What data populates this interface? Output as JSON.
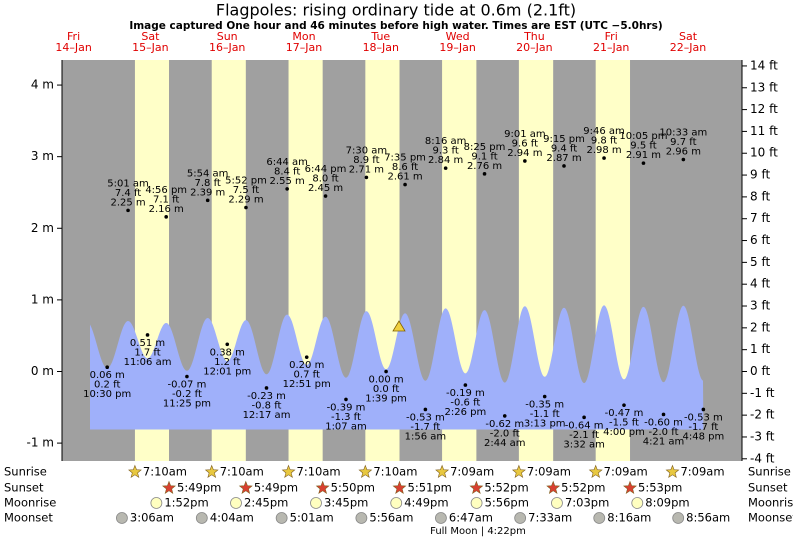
{
  "header": {
    "title": "Flagpoles: rising  ordinary tide at 0.6m (2.1ft)",
    "subtitle": "Image captured One hour and 46 minutes before high water. Times are EST (UTC −5.0hrs)"
  },
  "axes": {
    "ylim": [
      -1.25,
      4.35
    ],
    "yticks": [
      {
        "value": 4,
        "label": "4 m"
      },
      {
        "value": 3,
        "label": "3 m"
      },
      {
        "value": 2,
        "label": "2 m"
      },
      {
        "value": 1,
        "label": "1 m"
      },
      {
        "value": 0,
        "label": "0 m"
      },
      {
        "value": -1,
        "label": "-1 m"
      }
    ],
    "y2lim": [
      -4.101,
      14.272
    ],
    "y2ticks": [
      {
        "value": 14,
        "label": "14 ft"
      },
      {
        "value": 13,
        "label": "13 ft"
      },
      {
        "value": 12,
        "label": "12 ft"
      },
      {
        "value": 11,
        "label": "11 ft"
      },
      {
        "value": 10,
        "label": "10 ft"
      },
      {
        "value": 9,
        "label": "9 ft"
      },
      {
        "value": 8,
        "label": "8 ft"
      },
      {
        "value": 7,
        "label": "7 ft"
      },
      {
        "value": 6,
        "label": "6 ft"
      },
      {
        "value": 5,
        "label": "5 ft"
      },
      {
        "value": 4,
        "label": "4 ft"
      },
      {
        "value": 3,
        "label": "3 ft"
      },
      {
        "value": 2,
        "label": "2 ft"
      },
      {
        "value": 1,
        "label": "1 ft"
      },
      {
        "value": 0,
        "label": "0 ft"
      },
      {
        "value": -1,
        "label": "-1 ft"
      },
      {
        "value": -2,
        "label": "-2 ft"
      },
      {
        "value": -3,
        "label": "-3 ft"
      },
      {
        "value": -4,
        "label": "-4 ft"
      }
    ]
  },
  "days": [
    {
      "dow": "Fri",
      "date": "14–Jan",
      "tides": [
        {
          "time": "10:30 pm",
          "height": {
            "value": 0.06,
            "label": "0.06 m"
          },
          "ft": "0.2 ft"
        }
      ]
    },
    {
      "dow": "Sat",
      "date": "15–Jan",
      "tides": [
        {
          "time": "5:01 am",
          "height": {
            "value": 2.25,
            "label": "2.25 m"
          },
          "ft": "7.4 ft"
        },
        {
          "time": "11:06 am",
          "height": {
            "value": 0.51,
            "label": "0.51 m"
          },
          "ft": "1.7 ft"
        },
        {
          "time": "4:56 pm",
          "height": {
            "value": 2.16,
            "label": "2.16 m"
          },
          "ft": "7.1 ft"
        },
        {
          "time": "11:25 pm",
          "height": {
            "value": -0.07,
            "label": "-0.07 m"
          },
          "ft": "-0.2 ft"
        }
      ],
      "sunrise": "7:10am",
      "sunset": "5:49pm",
      "moonrise": "1:52pm",
      "moonset": "3:06am"
    },
    {
      "dow": "Sun",
      "date": "16–Jan",
      "tides": [
        {
          "time": "5:54 am",
          "height": {
            "value": 2.39,
            "label": "2.39 m"
          },
          "ft": "7.8 ft"
        },
        {
          "time": "12:01 pm",
          "height": {
            "value": 0.38,
            "label": "0.38 m"
          },
          "ft": "1.2 ft"
        },
        {
          "time": "5:52 pm",
          "height": {
            "value": 2.29,
            "label": "2.29 m"
          },
          "ft": "7.5 ft"
        }
      ],
      "sunrise": "7:10am",
      "sunset": "5:49pm",
      "moonrise": "2:45pm",
      "moonset": "4:04am"
    },
    {
      "dow": "Mon",
      "date": "17–Jan",
      "tides": [
        {
          "time": "12:17 am",
          "height": {
            "value": -0.23,
            "label": "-0.23 m"
          },
          "ft": "-0.8 ft"
        },
        {
          "time": "6:44 am",
          "height": {
            "value": 2.55,
            "label": "2.55 m"
          },
          "ft": "8.4 ft"
        },
        {
          "time": "12:51 pm",
          "height": {
            "value": 0.2,
            "label": "0.20 m"
          },
          "ft": "0.7 ft"
        },
        {
          "time": "6:44 pm",
          "height": {
            "value": 2.45,
            "label": "2.45 m"
          },
          "ft": "8.0 ft"
        }
      ],
      "sunrise": "7:10am",
      "sunset": "5:50pm",
      "moonrise": "3:45pm",
      "moonset": "5:01am"
    },
    {
      "dow": "Tue",
      "date": "18–Jan",
      "tides": [
        {
          "time": "1:07 am",
          "height": {
            "value": -0.39,
            "label": "-0.39 m"
          },
          "ft": "-1.3 ft"
        },
        {
          "time": "7:30 am",
          "height": {
            "value": 2.71,
            "label": "2.71 m"
          },
          "ft": "8.9 ft"
        },
        {
          "time": "1:39 pm",
          "height": {
            "value": 0.0,
            "label": "0.00 m"
          },
          "ft": "0.0 ft"
        },
        {
          "time": "7:35 pm",
          "height": {
            "value": 2.61,
            "label": "2.61 m"
          },
          "ft": "8.6 ft"
        }
      ],
      "sunrise": "7:10am",
      "sunset": "5:51pm",
      "moonrise": "4:49pm",
      "moonset": "5:56am"
    },
    {
      "dow": "Wed",
      "date": "19–Jan",
      "tides": [
        {
          "time": "1:56 am",
          "height": {
            "value": -0.53,
            "label": "-0.53 m"
          },
          "ft": "-1.7 ft"
        },
        {
          "time": "8:16 am",
          "height": {
            "value": 2.84,
            "label": "2.84 m"
          },
          "ft": "9.3 ft"
        },
        {
          "time": "2:26 pm",
          "height": {
            "value": -0.19,
            "label": "-0.19 m"
          },
          "ft": "-0.6 ft"
        },
        {
          "time": "8:25 pm",
          "height": {
            "value": 2.76,
            "label": "2.76 m"
          },
          "ft": "9.1 ft"
        }
      ],
      "sunrise": "7:09am",
      "sunset": "5:52pm",
      "moonrise": "5:56pm",
      "moonset": "6:47am"
    },
    {
      "dow": "Thu",
      "date": "20–Jan",
      "tides": [
        {
          "time": "2:44 am",
          "height": {
            "value": -0.62,
            "label": "-0.62 m"
          },
          "ft": "-2.0 ft"
        },
        {
          "time": "9:01 am",
          "height": {
            "value": 2.94,
            "label": "2.94 m"
          },
          "ft": "9.6 ft"
        },
        {
          "time": "3:13 pm",
          "height": {
            "value": -0.35,
            "label": "-0.35 m"
          },
          "ft": "-1.1 ft"
        },
        {
          "time": "9:15 pm",
          "height": {
            "value": 2.87,
            "label": "2.87 m"
          },
          "ft": "9.4 ft"
        }
      ],
      "sunrise": "7:09am",
      "sunset": "5:52pm",
      "moonrise": "7:03pm",
      "moonset": "7:33am"
    },
    {
      "dow": "Fri",
      "date": "21–Jan",
      "tides": [
        {
          "time": "3:32 am",
          "height": {
            "value": -0.64,
            "label": "-0.64 m"
          },
          "ft": "-2.1 ft"
        },
        {
          "time": "9:46 am",
          "height": {
            "value": 2.98,
            "label": "2.98 m"
          },
          "ft": "9.8 ft"
        },
        {
          "time": "4:00 pm",
          "height": {
            "value": -0.47,
            "label": "-0.47 m"
          },
          "ft": "-1.5 ft"
        },
        {
          "time": "10:05 pm",
          "height": {
            "value": 2.91,
            "label": "2.91 m"
          },
          "ft": "9.5 ft"
        }
      ],
      "sunrise": "7:09am",
      "sunset": "5:53pm",
      "moonrise": "8:09pm",
      "moonset": "8:16am"
    },
    {
      "dow": "Sat",
      "date": "22–Jan",
      "tides": [
        {
          "time": "4:21 am",
          "height": {
            "value": -0.6,
            "label": "-0.60 m"
          },
          "ft": "-2.0 ft"
        },
        {
          "time": "10:33 am",
          "height": {
            "value": 2.96,
            "label": "2.96 m"
          },
          "ft": "9.7 ft"
        },
        {
          "time": "4:48 pm",
          "height": {
            "value": -0.53,
            "label": "-0.53 m"
          },
          "ft": "-1.7 ft"
        }
      ],
      "sunrise": "7:09am",
      "moonset": "8:56am"
    }
  ],
  "row_labels": {
    "sunrise": "Sunrise",
    "sunset": "Sunset",
    "moonrise": "Moonrise",
    "moonset": "Moonset"
  },
  "moon_phase": "Full Moon | 4:22pm"
}
